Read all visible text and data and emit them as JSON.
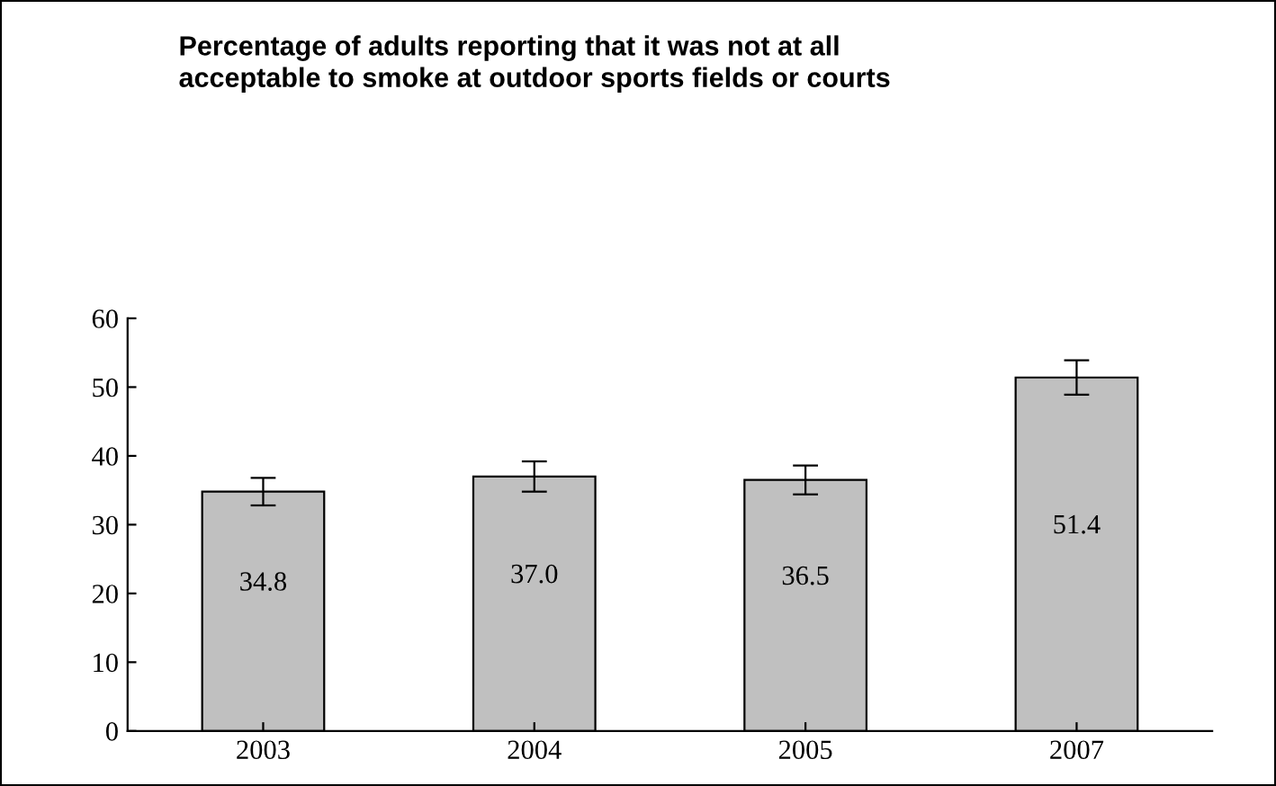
{
  "chart_data": {
    "type": "bar",
    "title": "Percentage of adults reporting that it was not at all\nacceptable to smoke at outdoor sports fields or courts",
    "categories": [
      "2003",
      "2004",
      "2005",
      "2007"
    ],
    "values": [
      34.8,
      37.0,
      36.5,
      51.4
    ],
    "errors": [
      2.0,
      2.2,
      2.1,
      2.5
    ],
    "color": "#c0c0c0",
    "ylim": [
      0,
      60
    ],
    "yticks": [
      0,
      10,
      20,
      30,
      40,
      50,
      60
    ],
    "value_labels": [
      "34.8",
      "37.0",
      "36.5",
      "51.4"
    ],
    "grid": false
  }
}
